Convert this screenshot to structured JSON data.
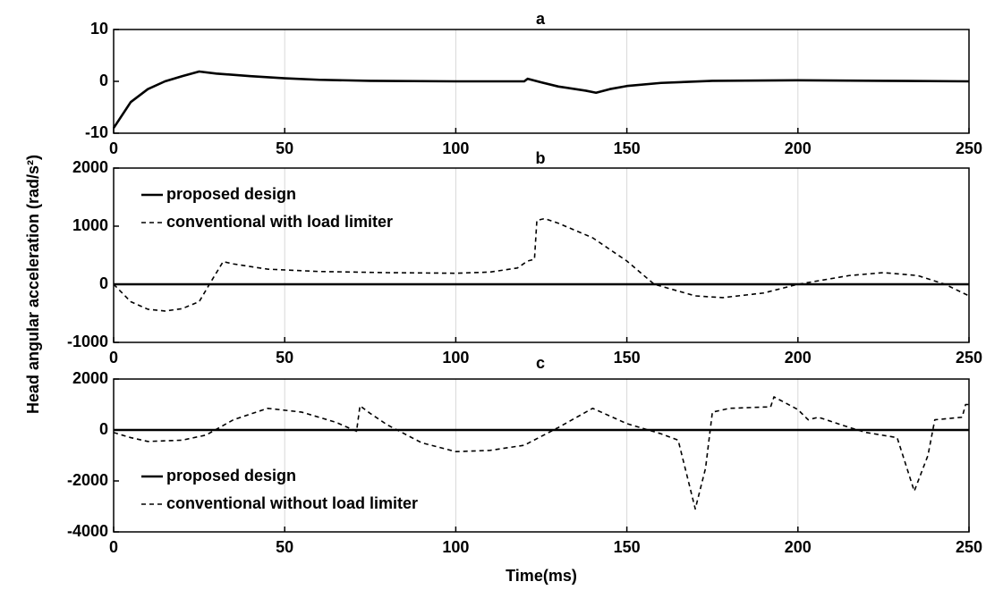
{
  "chart_data": [
    {
      "type": "line",
      "title": "a",
      "series": [
        {
          "name": "proposed design",
          "color": "#000000",
          "linestyle": "solid",
          "x": [
            0,
            5,
            10,
            15,
            20,
            25,
            30,
            40,
            50,
            60,
            75,
            100,
            120,
            121,
            125,
            130,
            138,
            141,
            145,
            150,
            160,
            175,
            200,
            225,
            250
          ],
          "values": [
            -9,
            -4,
            -1.5,
            0,
            1,
            1.9,
            1.5,
            1,
            0.6,
            0.3,
            0.1,
            0,
            0,
            0.5,
            -0.2,
            -1,
            -1.8,
            -2.2,
            -1.5,
            -0.9,
            -0.3,
            0.1,
            0.2,
            0.1,
            0
          ]
        }
      ],
      "legend": false,
      "xlim": [
        0,
        250
      ],
      "xticks": [
        0,
        50,
        100,
        150,
        200,
        250
      ],
      "ylim": [
        -10,
        10
      ],
      "yticks": [
        -10,
        0,
        10
      ],
      "grid": "x"
    },
    {
      "type": "line",
      "title": "b",
      "ylabel": "Head angular acceleration (rad/s²)",
      "series": [
        {
          "name": "proposed design",
          "color": "#000000",
          "linestyle": "solid",
          "x": [
            0,
            250
          ],
          "values": [
            0,
            0
          ]
        },
        {
          "name": "conventional with load limiter",
          "color": "#000000",
          "linestyle": "dashed",
          "x": [
            0,
            5,
            10,
            15,
            20,
            25,
            28,
            32,
            35,
            45,
            60,
            80,
            100,
            110,
            118,
            121,
            123,
            123.7,
            126,
            130,
            140,
            150,
            158,
            170,
            178,
            190,
            200,
            215,
            225,
            235,
            243,
            250
          ],
          "values": [
            0,
            -300,
            -430,
            -460,
            -420,
            -300,
            0,
            390,
            350,
            260,
            220,
            200,
            190,
            210,
            280,
            400,
            430,
            1100,
            1130,
            1050,
            800,
            400,
            0,
            -200,
            -230,
            -150,
            0,
            150,
            200,
            150,
            0,
            -200
          ]
        }
      ],
      "legend": "upper left",
      "xlim": [
        0,
        250
      ],
      "xticks": [
        0,
        50,
        100,
        150,
        200,
        250
      ],
      "ylim": [
        -1000,
        2000
      ],
      "yticks": [
        -1000,
        0,
        1000,
        2000
      ],
      "grid": "x"
    },
    {
      "type": "line",
      "title": "c",
      "xlabel": "Time(ms)",
      "series": [
        {
          "name": "proposed design",
          "color": "#000000",
          "linestyle": "solid",
          "x": [
            0,
            250
          ],
          "values": [
            0,
            0
          ]
        },
        {
          "name": "conventional without load limiter",
          "color": "#000000",
          "linestyle": "dashed",
          "x": [
            0,
            5,
            10,
            20,
            27,
            35,
            45,
            55,
            65,
            71,
            72,
            75,
            80,
            90,
            100,
            110,
            120,
            130,
            140,
            150,
            160,
            165,
            170,
            173,
            175,
            180,
            190,
            192,
            193,
            200,
            203,
            206,
            215,
            220,
            229,
            234,
            238,
            240,
            248,
            249,
            250
          ],
          "values": [
            -100,
            -300,
            -450,
            -400,
            -200,
            400,
            850,
            700,
            300,
            -50,
            950,
            650,
            200,
            -500,
            -850,
            -800,
            -600,
            100,
            850,
            250,
            -150,
            -400,
            -3100,
            -1500,
            700,
            850,
            900,
            900,
            1300,
            800,
            400,
            500,
            100,
            -100,
            -300,
            -2400,
            -1000,
            400,
            500,
            1000,
            1000
          ]
        }
      ],
      "legend": "lower left",
      "xlim": [
        0,
        250
      ],
      "xticks": [
        0,
        50,
        100,
        150,
        200,
        250
      ],
      "ylim": [
        -4000,
        2000
      ],
      "yticks": [
        -4000,
        -2000,
        0,
        2000
      ],
      "grid": "x"
    }
  ]
}
